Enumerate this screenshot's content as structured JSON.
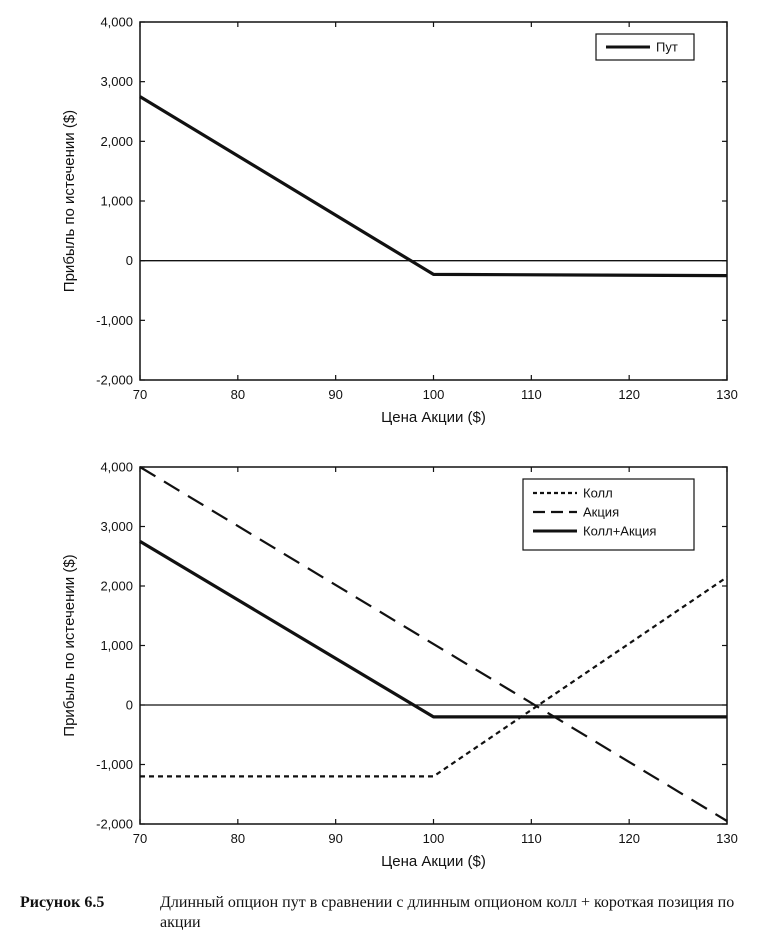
{
  "chart_data": [
    {
      "type": "line",
      "title": "",
      "xlabel": "Цена Акции ($)",
      "ylabel": "Прибыль по истечении ($)",
      "xlim": [
        70,
        130
      ],
      "ylim": [
        -2000,
        4000
      ],
      "x_ticks": [
        "70",
        "80",
        "90",
        "100",
        "110",
        "120",
        "130"
      ],
      "y_ticks": [
        "4,000",
        "3,000",
        "2,000",
        "1,000",
        "0",
        "-1,000",
        "-2,000"
      ],
      "grid": false,
      "legend_position": "top-right",
      "series": [
        {
          "name": "Пут",
          "style": "solid",
          "color": "#111111",
          "x": [
            70,
            100,
            130
          ],
          "y": [
            2750,
            -230,
            -250
          ]
        }
      ]
    },
    {
      "type": "line",
      "title": "",
      "xlabel": "Цена Акции ($)",
      "ylabel": "Прибыль по истечении ($)",
      "xlim": [
        70,
        130
      ],
      "ylim": [
        -2000,
        4000
      ],
      "x_ticks": [
        "70",
        "80",
        "90",
        "100",
        "110",
        "120",
        "130"
      ],
      "y_ticks": [
        "4,000",
        "3,000",
        "2,000",
        "1,000",
        "0",
        "-1,000",
        "-2,000"
      ],
      "grid": false,
      "legend_position": "top-right",
      "series": [
        {
          "name": "Колл",
          "style": "dotted",
          "color": "#111111",
          "x": [
            70,
            100,
            130
          ],
          "y": [
            -1200,
            -1200,
            2150
          ]
        },
        {
          "name": "Акция",
          "style": "dashed",
          "color": "#111111",
          "x": [
            70,
            130
          ],
          "y": [
            4000,
            -1950
          ]
        },
        {
          "name": "Колл+Акция",
          "style": "solid",
          "color": "#111111",
          "x": [
            70,
            100,
            130
          ],
          "y": [
            2750,
            -200,
            -200
          ]
        }
      ]
    }
  ],
  "caption": {
    "label": "Рисунок 6.5",
    "text": "Длинный опцион пут в сравнении с длинным опционом колл + короткая позиция по акции"
  }
}
